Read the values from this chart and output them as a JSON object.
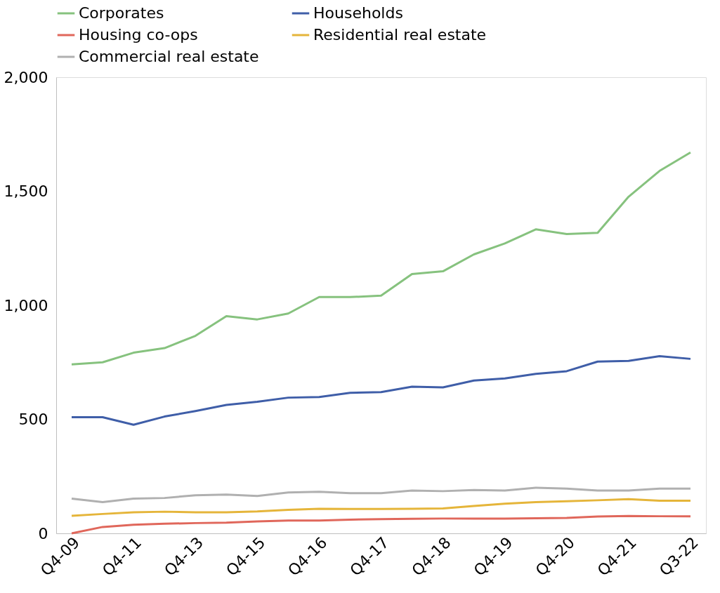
{
  "chart_data": {
    "type": "line",
    "categories": [
      "Q4-09",
      null,
      "Q4-11",
      null,
      "Q4-13",
      null,
      "Q4-15",
      null,
      "Q4-16",
      null,
      "Q4-17",
      null,
      "Q4-18",
      null,
      "Q4-19",
      null,
      "Q4-20",
      null,
      "Q4-21",
      null,
      "Q3-22"
    ],
    "series": [
      {
        "name": "Corporates",
        "color": "#86c27e",
        "values": [
          741,
          750,
          792,
          812,
          866,
          952,
          938,
          964,
          1036,
          1036,
          1042,
          1137,
          1149,
          1223,
          1271,
          1333,
          1312,
          1318,
          1476,
          1589,
          1670
        ]
      },
      {
        "name": "Households",
        "color": "#3f5ea8",
        "values": [
          509,
          509,
          476,
          512,
          536,
          563,
          577,
          595,
          598,
          616,
          619,
          643,
          640,
          670,
          679,
          699,
          711,
          753,
          756,
          777,
          765
        ]
      },
      {
        "name": "Housing co-ops",
        "color": "#e0675b",
        "values": [
          0,
          28,
          38,
          42,
          45,
          47,
          52,
          56,
          56,
          60,
          62,
          64,
          65,
          65,
          65,
          66,
          68,
          74,
          76,
          75,
          75
        ]
      },
      {
        "name": "Residential real estate",
        "color": "#e5b53a",
        "values": [
          77,
          85,
          92,
          95,
          92,
          92,
          96,
          103,
          108,
          107,
          107,
          108,
          109,
          120,
          130,
          137,
          141,
          145,
          150,
          143,
          143
        ]
      },
      {
        "name": "Commercial real estate",
        "color": "#b0b0b0",
        "values": [
          152,
          137,
          152,
          155,
          167,
          170,
          164,
          179,
          182,
          176,
          176,
          188,
          185,
          190,
          188,
          200,
          196,
          188,
          188,
          196,
          196
        ]
      }
    ],
    "ylim": [
      0,
      2000
    ],
    "yticks": [
      0,
      500,
      {
        "value": 1000,
        "label": "1,000"
      },
      {
        "value": 1500,
        "label": "1,500"
      },
      {
        "value": 2000,
        "label": "2,000"
      }
    ],
    "grid": false,
    "legend": "top",
    "marker": "none",
    "line_style": "solid"
  }
}
